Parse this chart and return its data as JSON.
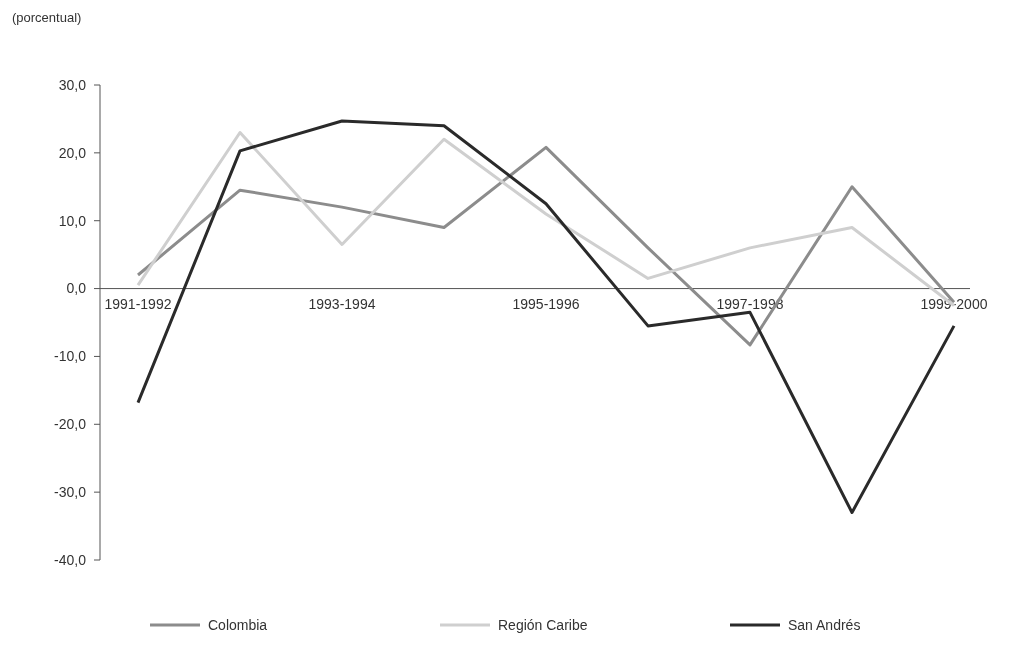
{
  "chart_data": {
    "type": "line",
    "ylabel": "(porcentual)",
    "categories": [
      "1991-1992",
      null,
      "1993-1994",
      null,
      "1995-1996",
      null,
      "1997-1998",
      null,
      "1999-2000"
    ],
    "series": [
      {
        "name": "Colombia",
        "color": "#8c8c8c",
        "values": [
          2,
          14.5,
          12,
          9,
          20.8,
          6,
          -8.3,
          15,
          -2
        ]
      },
      {
        "name": "Región Caribe",
        "color": "#cfcfcf",
        "values": [
          0.5,
          23,
          6.5,
          22,
          11,
          1.5,
          6,
          9,
          -2.5
        ]
      },
      {
        "name": "San Andrés",
        "color": "#2a2a2a",
        "values": [
          -16.8,
          20.3,
          24.7,
          24,
          12.5,
          -5.5,
          -3.5,
          -33,
          -5.5
        ]
      }
    ],
    "ylim": [
      -40,
      30
    ],
    "yticks": [
      {
        "value": -40,
        "label": "-40,0"
      },
      {
        "value": -30,
        "label": "-30,0"
      },
      {
        "value": -20,
        "label": "-20,0"
      },
      {
        "value": -10,
        "label": "-10,0"
      },
      {
        "value": 0,
        "label": "0,0"
      },
      {
        "value": 10,
        "label": "10,0"
      },
      {
        "value": 20,
        "label": "20,0"
      },
      {
        "value": 30,
        "label": "30,0"
      }
    ],
    "grid": false,
    "legend": "bottom",
    "marker": "none",
    "line_style": "solid"
  }
}
